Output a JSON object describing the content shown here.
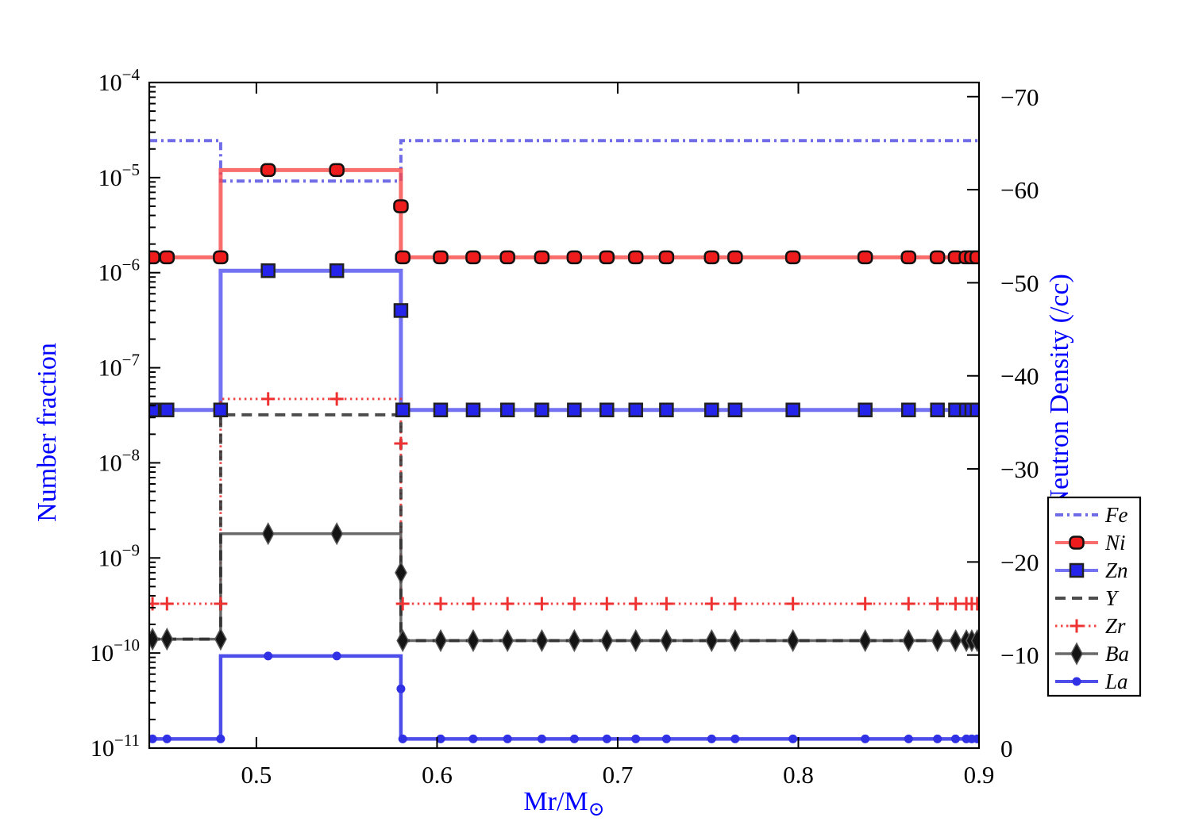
{
  "figure": {
    "background": "#ffffff",
    "axis_label_color": "#0000ff",
    "tick_label_color": "#000000",
    "spine_color": "#000000"
  },
  "chart_data": {
    "type": "line",
    "title": "",
    "xlabel_main": "Mr/M",
    "xlabel_sub": "⊙",
    "ylabel_left": "Number fraction",
    "ylabel_right": "Log Neutron Density (/cc)",
    "label_color": "#0000ff",
    "x_range": [
      0.4407,
      0.9
    ],
    "x_ticks": [
      0.5,
      0.6,
      0.7,
      0.8,
      0.9
    ],
    "x_tick_labels": [
      "0.5",
      "0.6",
      "0.7",
      "0.8",
      "0.9"
    ],
    "y_left_scale": "log",
    "y_left_tick_exponents": [
      -4,
      -5,
      -6,
      -7,
      -8,
      -9,
      -10,
      -11
    ],
    "y_right_ticks": [
      -70,
      -60,
      -50,
      -40,
      -30,
      -20,
      -10,
      0
    ],
    "y_right_tick_labels": [
      "−70",
      "−60",
      "−50",
      "−40",
      "−30",
      "−20",
      "−10",
      "0"
    ],
    "grid": "off",
    "legend_position": "outside-right",
    "step_region": {
      "rise_x": 0.4802,
      "fall_x": 0.58
    },
    "marker_x": {
      "pre": [
        0.4425,
        0.4505,
        0.4802
      ],
      "plateau": [
        0.5065,
        0.5445
      ],
      "fall_x": 0.58,
      "post": [
        0.581,
        0.602,
        0.62,
        0.639,
        0.658,
        0.676,
        0.694,
        0.71,
        0.727,
        0.752,
        0.765,
        0.797,
        0.837,
        0.861,
        0.877,
        0.887,
        0.893,
        0.896,
        0.899
      ]
    },
    "series": [
      {
        "name": "Fe",
        "color": "#5752e3",
        "opacity": 0.85,
        "style": "dashdot",
        "line_width": 4,
        "marker": "none",
        "base": 2.45e-05,
        "plateau": 9.2e-06,
        "after": 2.45e-05
      },
      {
        "name": "Ni",
        "color": "#f84848",
        "opacity": 0.8,
        "style": "solid",
        "line_width": 5,
        "marker": "circle",
        "marker_fill": "#ee1c1c",
        "marker_edge": "#111111",
        "base": 1.45e-06,
        "plateau": 1.2e-05,
        "after": 1.45e-06,
        "fall_marker": 5e-06
      },
      {
        "name": "Zn",
        "color": "#4f4ff0",
        "opacity": 0.8,
        "style": "solid",
        "line_width": 5,
        "marker": "square",
        "marker_fill": "#2424ea",
        "marker_edge": "#222222",
        "base": 3.6e-08,
        "plateau": 1.05e-06,
        "after": 3.6e-08,
        "fall_marker": 4e-07
      },
      {
        "name": "Y",
        "color": "#2e2e2e",
        "opacity": 0.85,
        "style": "dashed",
        "line_width": 4,
        "marker": "none",
        "base": 1.4e-10,
        "plateau": 3.2e-08,
        "after": 1.35e-10
      },
      {
        "name": "Zr",
        "color": "#ee3232",
        "opacity": 0.9,
        "style": "dotted",
        "line_width": 3,
        "marker": "plus",
        "marker_fill": "#ee3232",
        "marker_edge": "#ee3232",
        "base": 3.3e-10,
        "plateau": 4.7e-08,
        "after": 3.3e-10,
        "fall_marker": 1.6e-08
      },
      {
        "name": "Ba",
        "color": "#4f4f4f",
        "opacity": 0.85,
        "style": "solid",
        "line_width": 3.5,
        "marker": "diamond",
        "marker_fill": "#141414",
        "marker_edge": "#555555",
        "base": 1.4e-10,
        "plateau": 1.8e-09,
        "after": 1.35e-10,
        "fall_marker": 7e-10
      },
      {
        "name": "La",
        "color": "#3b3be8",
        "opacity": 0.9,
        "style": "solid",
        "line_width": 4.5,
        "marker": "dot",
        "marker_fill": "#3030e5",
        "marker_edge": "#3030e5",
        "base": 1.25e-11,
        "plateau": 9.3e-11,
        "after": 1.25e-11,
        "fall_marker": 4.2e-11
      }
    ]
  }
}
